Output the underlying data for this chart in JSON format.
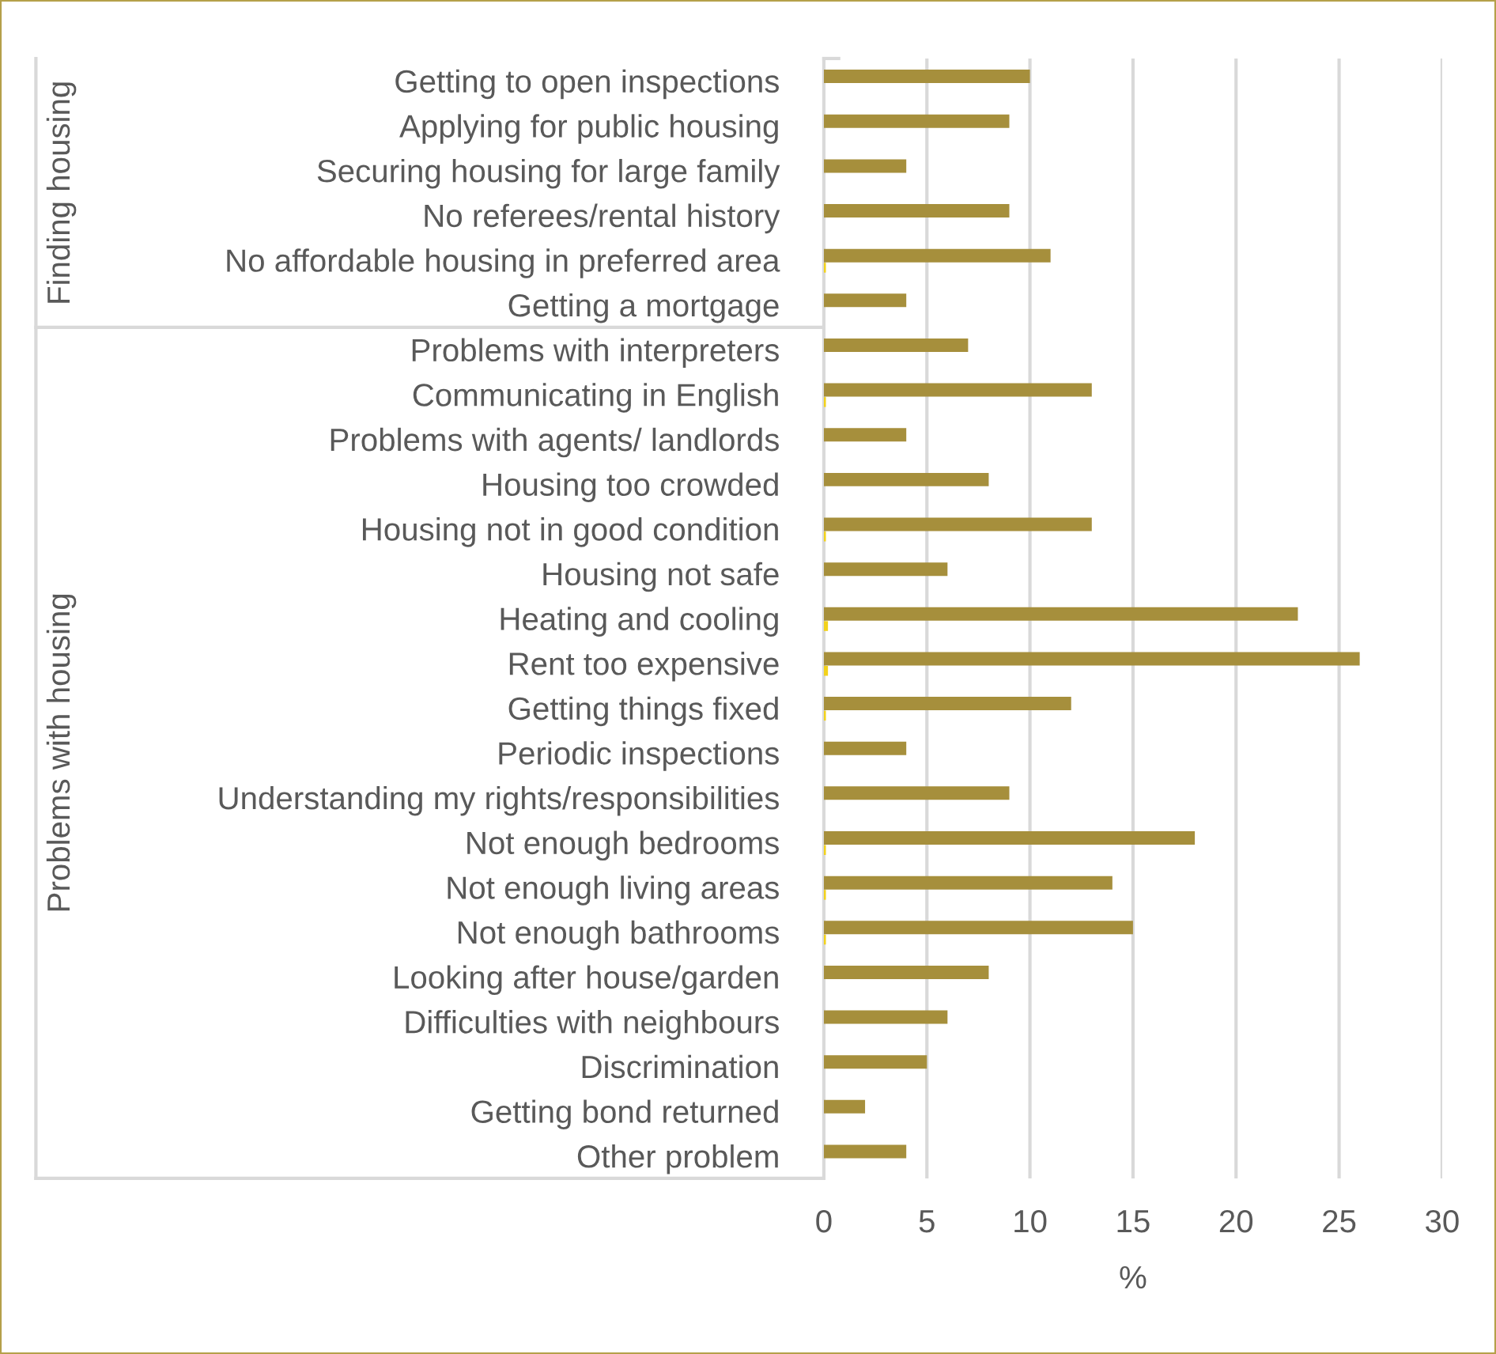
{
  "chart_data": {
    "type": "bar",
    "orientation": "horizontal",
    "xlabel": "%",
    "categories": [
      "Getting to open inspections",
      "Applying for public housing",
      "Securing housing for large family",
      "No referees/rental history",
      "No affordable housing in preferred area",
      "Getting a mortgage",
      "Problems with interpreters",
      "Communicating in English",
      "Problems with agents/ landlords",
      "Housing too crowded",
      "Housing not in good condition",
      "Housing not safe",
      "Heating and cooling",
      "Rent too expensive",
      "Getting things fixed",
      "Periodic inspections",
      "Understanding my rights/responsibilities",
      "Not enough bedrooms",
      "Not enough living areas",
      "Not enough bathrooms",
      "Looking after house/garden",
      "Difficulties with neighbours",
      "Discrimination",
      "Getting bond returned",
      "Other problem"
    ],
    "series": [
      {
        "color": "#a68f3c",
        "values": [
          10,
          9,
          4,
          9,
          11,
          4,
          7,
          13,
          4,
          8,
          13,
          6,
          23,
          26,
          12,
          4,
          9,
          18,
          14,
          15,
          8,
          6,
          5,
          2,
          4
        ]
      },
      {
        "color": "#f2d21b",
        "values": [
          null,
          null,
          null,
          null,
          0.1,
          null,
          null,
          0.1,
          null,
          null,
          0.1,
          null,
          0.2,
          0.2,
          0.1,
          null,
          null,
          0.1,
          0.1,
          0.1,
          null,
          null,
          null,
          null,
          null
        ]
      }
    ],
    "xlim": [
      0,
      30
    ],
    "xticks": [
      0,
      5,
      10,
      15,
      20,
      25,
      30
    ],
    "grid": "x",
    "legend": false,
    "annotations": [
      "Finding housing",
      "Problems with housing"
    ]
  }
}
